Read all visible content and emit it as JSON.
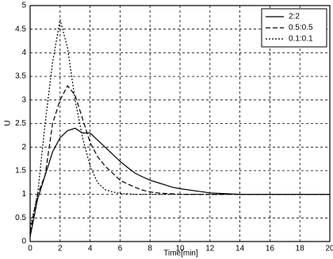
{
  "chart_data": {
    "type": "line",
    "xlabel": "Time[min]",
    "ylabel": "U",
    "x": [
      0,
      0.5,
      1,
      1.5,
      2,
      2.5,
      3,
      3.5,
      4,
      4.5,
      5,
      5.5,
      6,
      6.5,
      7,
      7.5,
      8,
      8.5,
      9,
      9.5,
      10,
      12,
      14,
      16,
      18,
      20
    ],
    "series": [
      {
        "name": "2:2",
        "color": "#000000",
        "style": "solid",
        "values": [
          0.1,
          0.9,
          1.4,
          1.9,
          2.2,
          2.35,
          2.4,
          2.3,
          2.3,
          2.15,
          2.0,
          1.85,
          1.7,
          1.57,
          1.45,
          1.37,
          1.3,
          1.25,
          1.2,
          1.15,
          1.12,
          1.03,
          1.0,
          1.0,
          1.0,
          1.0
        ]
      },
      {
        "name": "0.5:0.5",
        "color": "#000000",
        "style": "dashed",
        "values": [
          0.2,
          1.0,
          1.4,
          2.5,
          3.0,
          3.3,
          3.1,
          2.6,
          2.1,
          1.8,
          1.6,
          1.45,
          1.3,
          1.22,
          1.15,
          1.09,
          1.05,
          1.03,
          1.02,
          1.01,
          1.0,
          1.0,
          1.0,
          1.0,
          1.0,
          1.0
        ]
      },
      {
        "name": "0.1:0.1",
        "color": "#000000",
        "style": "dotted",
        "values": [
          0.3,
          1.0,
          2.5,
          3.8,
          4.7,
          4.1,
          3.0,
          2.2,
          1.6,
          1.25,
          1.1,
          1.05,
          1.02,
          1.01,
          1.0,
          1.0,
          1.0,
          1.0,
          1.0,
          1.0,
          1.0,
          1.0,
          1.0,
          1.0,
          1.0,
          1.0
        ]
      }
    ],
    "xlim": [
      0,
      20
    ],
    "xticks": [
      0,
      2,
      4,
      6,
      8,
      10,
      12,
      14,
      16,
      18,
      20
    ],
    "ylim": [
      0,
      5
    ],
    "yticks": [
      0,
      0.5,
      1,
      1.5,
      2,
      2.5,
      3,
      3.5,
      4,
      4.5,
      5
    ],
    "grid": true,
    "legend": "upper right"
  }
}
